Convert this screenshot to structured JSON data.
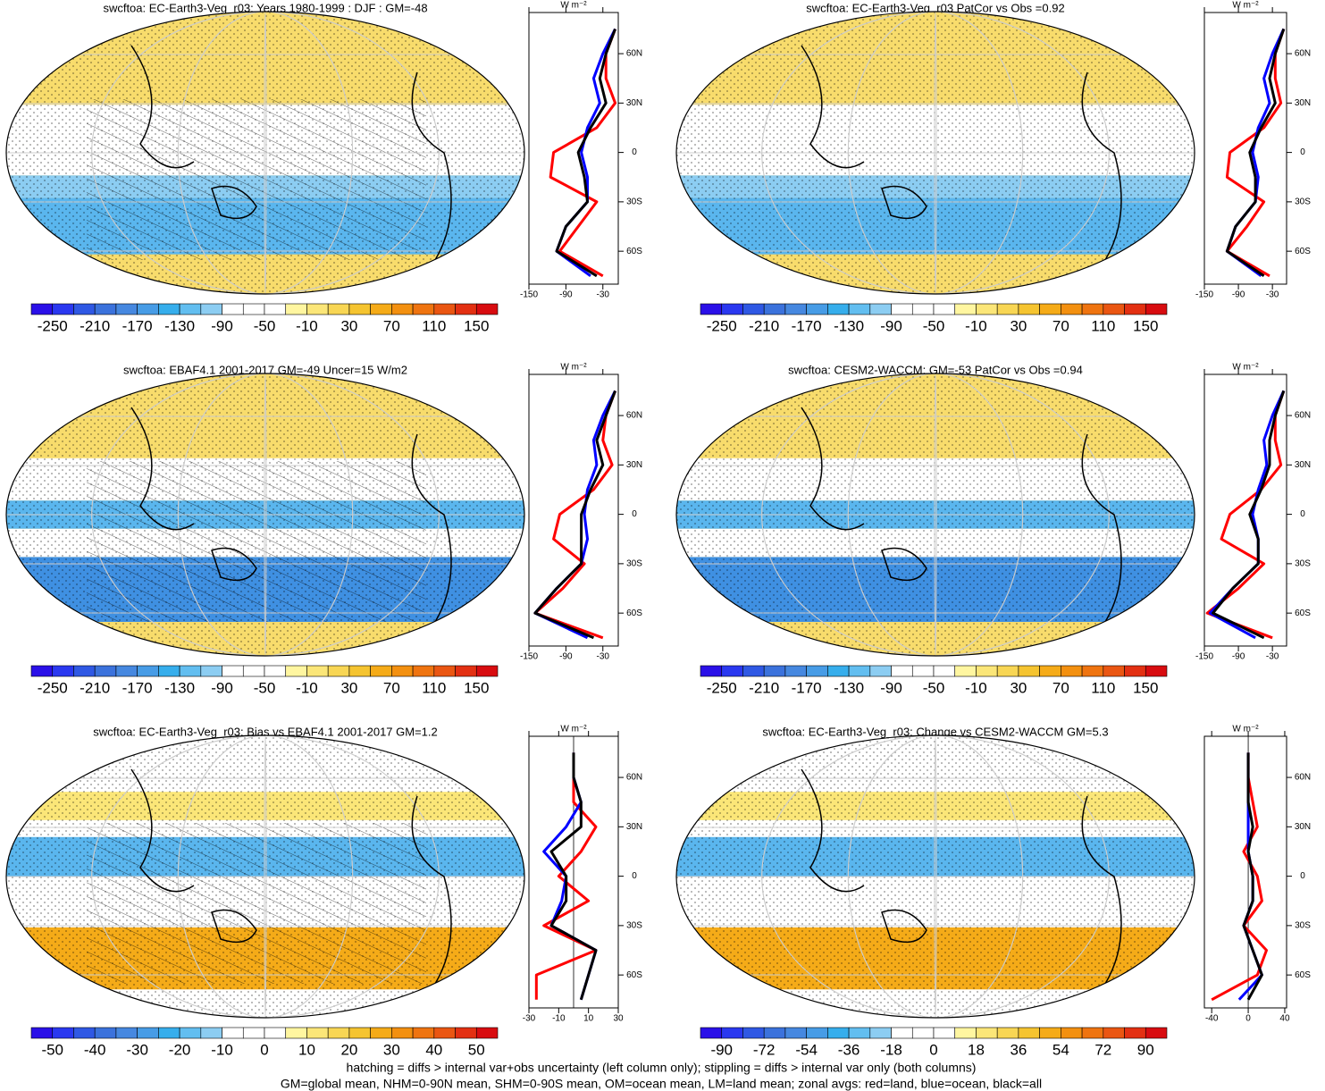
{
  "chart_data": [
    {
      "type": "map",
      "title": "swcftoa: EC-Earth3-Veg_r03: Years 1980-1999 : DJF : GM=-48",
      "colorbar_labels": [
        -250,
        -210,
        -170,
        -130,
        -90,
        -50,
        -10,
        30,
        70,
        110,
        150
      ],
      "profile": {
        "type": "line",
        "xlabel": "W m⁻²",
        "xlim": [
          -150,
          -5
        ],
        "xticks": [
          -150,
          -90,
          -30
        ],
        "ylim": [
          -80,
          85
        ],
        "yticks": [
          {
            "value": 60,
            "label": "60N"
          },
          {
            "value": 30,
            "label": "30N"
          },
          0,
          {
            "value": -30,
            "label": "30S"
          },
          {
            "value": -60,
            "label": "60S"
          }
        ],
        "y": [
          -75,
          -60,
          -45,
          -30,
          -15,
          0,
          15,
          30,
          45,
          60,
          75
        ],
        "series": [
          {
            "color": "#ff0000",
            "values": [
              -30,
              -100,
              -70,
              -40,
              -115,
              -110,
              -40,
              -10,
              -25,
              -25,
              -10
            ]
          },
          {
            "color": "#0000ff",
            "values": [
              -50,
              -105,
              -90,
              -55,
              -55,
              -65,
              -55,
              -35,
              -45,
              -30,
              -10
            ]
          },
          {
            "color": "#000000",
            "values": [
              -40,
              -105,
              -90,
              -55,
              -60,
              -70,
              -50,
              -25,
              -35,
              -25,
              -10
            ]
          }
        ]
      }
    },
    {
      "type": "map",
      "title": "swcftoa: EC-Earth3-Veg_r03 PatCor vs Obs =0.92",
      "colorbar_labels": [
        -250,
        -210,
        -170,
        -130,
        -90,
        -50,
        -10,
        30,
        70,
        110,
        150
      ],
      "profile": {
        "type": "line",
        "xlabel": "W m⁻²",
        "xlim": [
          -150,
          -5
        ],
        "xticks": [
          -150,
          -90,
          -30
        ],
        "ylim": [
          -80,
          85
        ],
        "yticks": [
          {
            "value": 60,
            "label": "60N"
          },
          {
            "value": 30,
            "label": "30N"
          },
          0,
          {
            "value": -30,
            "label": "30S"
          },
          {
            "value": -60,
            "label": "60S"
          }
        ],
        "y": [
          -75,
          -60,
          -45,
          -30,
          -15,
          0,
          15,
          30,
          45,
          60,
          75
        ],
        "series": [
          {
            "color": "#ff0000",
            "values": [
              -35,
              -110,
              -75,
              -45,
              -110,
              -105,
              -45,
              -15,
              -25,
              -25,
              -10
            ]
          },
          {
            "color": "#0000ff",
            "values": [
              -50,
              -110,
              -95,
              -60,
              -55,
              -65,
              -55,
              -35,
              -45,
              -30,
              -10
            ]
          },
          {
            "color": "#000000",
            "values": [
              -45,
              -110,
              -95,
              -60,
              -60,
              -70,
              -50,
              -25,
              -35,
              -25,
              -10
            ]
          }
        ]
      }
    },
    {
      "type": "map",
      "title": "swcftoa: EBAF4.1 2001-2017 GM=-49 Uncer=15 W/m2",
      "colorbar_labels": [
        -250,
        -210,
        -170,
        -130,
        -90,
        -50,
        -10,
        30,
        70,
        110,
        150
      ],
      "profile": {
        "type": "line",
        "xlabel": "W m⁻²",
        "xlim": [
          -150,
          -5
        ],
        "xticks": [
          -150,
          -90,
          -30
        ],
        "ylim": [
          -80,
          85
        ],
        "yticks": [
          {
            "value": 60,
            "label": "60N"
          },
          {
            "value": 30,
            "label": "30N"
          },
          0,
          {
            "value": -30,
            "label": "30S"
          },
          {
            "value": -60,
            "label": "60S"
          }
        ],
        "y": [
          -75,
          -60,
          -45,
          -30,
          -15,
          0,
          15,
          30,
          45,
          60,
          75
        ],
        "series": [
          {
            "color": "#ff0000",
            "values": [
              -30,
              -140,
              -95,
              -60,
              -110,
              -100,
              -45,
              -15,
              -30,
              -25,
              -10
            ]
          },
          {
            "color": "#0000ff",
            "values": [
              -55,
              -140,
              -105,
              -65,
              -55,
              -60,
              -55,
              -40,
              -45,
              -30,
              -10
            ]
          },
          {
            "color": "#000000",
            "values": [
              -45,
              -140,
              -105,
              -65,
              -65,
              -65,
              -50,
              -30,
              -40,
              -25,
              -10
            ]
          }
        ]
      }
    },
    {
      "type": "map",
      "title": "swcftoa: CESM2-WACCM: GM=-53 PatCor vs Obs =0.94",
      "colorbar_labels": [
        -250,
        -210,
        -170,
        -130,
        -90,
        -50,
        -10,
        30,
        70,
        110,
        150
      ],
      "profile": {
        "type": "line",
        "xlabel": "W m⁻²",
        "xlim": [
          -150,
          -5
        ],
        "xticks": [
          -150,
          -90,
          -30
        ],
        "ylim": [
          -80,
          85
        ],
        "yticks": [
          {
            "value": 60,
            "label": "60N"
          },
          {
            "value": 30,
            "label": "30N"
          },
          0,
          {
            "value": -30,
            "label": "30S"
          },
          {
            "value": -60,
            "label": "60S"
          }
        ],
        "y": [
          -75,
          -60,
          -45,
          -30,
          -15,
          0,
          15,
          30,
          45,
          60,
          75
        ],
        "series": [
          {
            "color": "#ff0000",
            "values": [
              -30,
              -145,
              -90,
              -45,
              -120,
              -105,
              -50,
              -15,
              -25,
              -25,
              -10
            ]
          },
          {
            "color": "#0000ff",
            "values": [
              -60,
              -140,
              -100,
              -55,
              -55,
              -65,
              -55,
              -40,
              -45,
              -30,
              -10
            ]
          },
          {
            "color": "#000000",
            "values": [
              -45,
              -135,
              -100,
              -55,
              -55,
              -70,
              -50,
              -35,
              -35,
              -25,
              -10
            ]
          }
        ]
      }
    },
    {
      "type": "map",
      "title": "swcftoa: EC-Earth3-Veg_r03: Bias vs EBAF4.1 2001-2017 GM=1.2",
      "colorbar_labels": [
        -50,
        -40,
        -30,
        -20,
        -10,
        0,
        10,
        20,
        30,
        40,
        50
      ],
      "profile": {
        "type": "line",
        "xlabel": "W m⁻²",
        "xlim": [
          -30,
          30
        ],
        "xticks": [
          -30,
          -10,
          10,
          30
        ],
        "ylim": [
          -80,
          85
        ],
        "yticks": [
          {
            "value": 60,
            "label": "60N"
          },
          {
            "value": 30,
            "label": "30N"
          },
          0,
          {
            "value": -30,
            "label": "30S"
          },
          {
            "value": -60,
            "label": "60S"
          }
        ],
        "y": [
          -75,
          -60,
          -45,
          -30,
          -15,
          0,
          15,
          30,
          45,
          60,
          75
        ],
        "series": [
          {
            "color": "#ff0000",
            "values": [
              -25,
              -25,
              15,
              -20,
              10,
              -10,
              5,
              15,
              0,
              0,
              0
            ]
          },
          {
            "color": "#0000ff",
            "values": [
              5,
              10,
              15,
              -15,
              -8,
              -5,
              -20,
              -5,
              5,
              0,
              0
            ]
          },
          {
            "color": "#000000",
            "values": [
              5,
              10,
              15,
              -15,
              -5,
              -5,
              -15,
              5,
              5,
              0,
              0
            ]
          }
        ]
      }
    },
    {
      "type": "map",
      "title": "swcftoa: EC-Earth3-Veg_r03: Change vs CESM2-WACCM GM=5.3",
      "colorbar_labels": [
        -90,
        -72,
        -54,
        -36,
        -18,
        0,
        18,
        36,
        54,
        72,
        90
      ],
      "profile": {
        "type": "line",
        "xlabel": "W m⁻²",
        "xlim": [
          -48,
          42
        ],
        "xticks": [
          -40,
          0,
          40
        ],
        "ylim": [
          -80,
          85
        ],
        "yticks": [
          {
            "value": 60,
            "label": "60N"
          },
          {
            "value": 30,
            "label": "30N"
          },
          0,
          {
            "value": -30,
            "label": "30S"
          },
          {
            "value": -60,
            "label": "60S"
          }
        ],
        "y": [
          -75,
          -60,
          -45,
          -30,
          -15,
          0,
          15,
          30,
          45,
          60,
          75
        ],
        "series": [
          {
            "color": "#ff0000",
            "values": [
              -40,
              10,
              20,
              -5,
              15,
              10,
              -5,
              10,
              5,
              0,
              0
            ]
          },
          {
            "color": "#0000ff",
            "values": [
              -10,
              15,
              5,
              -5,
              5,
              5,
              0,
              0,
              0,
              0,
              0
            ]
          },
          {
            "color": "#000000",
            "values": [
              0,
              15,
              5,
              -5,
              5,
              5,
              0,
              5,
              0,
              0,
              0
            ]
          }
        ]
      }
    }
  ],
  "colormap": [
    "#2a10e8",
    "#2a38f0",
    "#2f58e4",
    "#3b72dc",
    "#4688e0",
    "#479ce6",
    "#36aeec",
    "#62bef0",
    "#8ccdf2",
    "#ffffff",
    "#ffffff",
    "#ffffff",
    "#fff6a0",
    "#fbe678",
    "#f8d654",
    "#f5c430",
    "#f5ab18",
    "#f39010",
    "#ef7410",
    "#ea5612",
    "#e33012",
    "#d80c10"
  ],
  "footnotes": [
    "hatching = diffs > internal var+obs uncertainty (left column only); stippling = diffs > internal var only (both columns)",
    "GM=global mean, NHM=0-90N mean, SHM=0-90S mean, OM=ocean mean, LM=land mean; zonal avgs: red=land, blue=ocean, black=all"
  ]
}
